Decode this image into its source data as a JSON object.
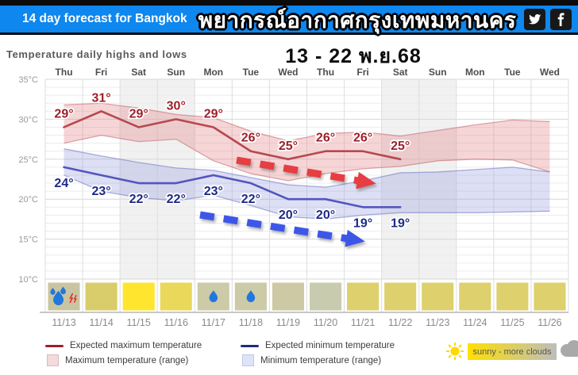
{
  "header": {
    "forecast_label": "14 day forecast for Bangkok",
    "title_thai": "พยากรณ์อากาศกรุงเทพมหานคร",
    "date_range": "13 - 22 พ.ย.68",
    "bar_color": "#0e87ef",
    "social_icons": [
      "twitter",
      "facebook"
    ]
  },
  "chart_heading": "Temperature daily highs and lows",
  "chart_data": {
    "type": "line",
    "title": "Temperature daily highs and lows",
    "x_day_labels": [
      "Thu",
      "Fri",
      "Sat",
      "Sun",
      "Mon",
      "Tue",
      "Wed",
      "Thu",
      "Fri",
      "Sat",
      "Sun",
      "Mon",
      "Tue",
      "Wed"
    ],
    "x_date_labels": [
      "11/13",
      "11/14",
      "11/15",
      "11/16",
      "11/17",
      "11/18",
      "11/19",
      "11/20",
      "11/21",
      "11/22",
      "11/23",
      "11/24",
      "11/25",
      "11/26"
    ],
    "ylim": [
      10,
      35
    ],
    "ytick_values": [
      35,
      30,
      25,
      20,
      15,
      10
    ],
    "ytick_labels": [
      "35°C",
      "30°C",
      "25°C",
      "20°C",
      "15°C",
      "10°C"
    ],
    "grid": true,
    "weekend_shaded_columns": [
      2,
      3,
      9,
      10
    ],
    "series": [
      {
        "name": "Expected maximum temperature",
        "color": "#b5494f",
        "label_color": "#9e1f27",
        "values": [
          29,
          31,
          29,
          30,
          29,
          26,
          25,
          26,
          26,
          25
        ]
      },
      {
        "name": "Expected minimum temperature",
        "color": "#5356bd",
        "label_color": "#1d2a85",
        "values": [
          24,
          23,
          22,
          22,
          23,
          22,
          20,
          20,
          19,
          19
        ]
      }
    ],
    "bands": [
      {
        "name": "Maximum temperature (range)",
        "fill": "rgba(228,128,134,0.33)",
        "edge": "rgba(190,100,106,0.55)",
        "upper": [
          31.8,
          32.0,
          31.4,
          30.6,
          30.2,
          28.5,
          27.3,
          28.2,
          28.4,
          27.9,
          28.6,
          29.3,
          29.9,
          29.7
        ],
        "lower": [
          27.0,
          28.0,
          27.2,
          27.5,
          24.8,
          23.2,
          22.3,
          23.2,
          23.8,
          24.1,
          24.8,
          25.0,
          24.9,
          23.4
        ]
      },
      {
        "name": "Minimum temperature (range)",
        "fill": "rgba(148,155,222,0.32)",
        "edge": "rgba(118,124,198,0.6)",
        "upper": [
          26.3,
          25.4,
          24.6,
          23.9,
          23.6,
          22.7,
          21.8,
          21.5,
          22.3,
          23.3,
          23.4,
          23.7,
          24.0,
          23.4
        ],
        "lower": [
          23.0,
          21.0,
          20.2,
          19.8,
          20.5,
          19.2,
          17.8,
          17.5,
          18.0,
          18.3,
          18.3,
          18.3,
          18.4,
          18.5
        ]
      }
    ],
    "trend_arrows": [
      {
        "series": "max",
        "direction": "down-right",
        "color": "#e63e42"
      },
      {
        "series": "min",
        "direction": "down-right",
        "color": "#3c57e8"
      }
    ],
    "daily_conditions": [
      {
        "date": "11/13",
        "day": "Thu",
        "cell_color": "#c9c5a1",
        "icons": [
          "heavy-rain",
          "thunderstorm"
        ]
      },
      {
        "date": "11/14",
        "day": "Fri",
        "cell_color": "#d9cc6b",
        "icons": []
      },
      {
        "date": "11/15",
        "day": "Sat",
        "cell_color": "#ffe52e",
        "icons": []
      },
      {
        "date": "11/16",
        "day": "Sun",
        "cell_color": "#e9d85a",
        "icons": []
      },
      {
        "date": "11/17",
        "day": "Mon",
        "cell_color": "#cccaa7",
        "icons": [
          "rain"
        ]
      },
      {
        "date": "11/18",
        "day": "Tue",
        "cell_color": "#cccaa7",
        "icons": [
          "rain"
        ]
      },
      {
        "date": "11/19",
        "day": "Wed",
        "cell_color": "#ccc9a4",
        "icons": []
      },
      {
        "date": "11/20",
        "day": "Thu",
        "cell_color": "#c9cbae",
        "icons": []
      },
      {
        "date": "11/21",
        "day": "Fri",
        "cell_color": "#ddd06d",
        "icons": []
      },
      {
        "date": "11/22",
        "day": "Sat",
        "cell_color": "#ddd06d",
        "icons": []
      },
      {
        "date": "11/23",
        "day": "Sun",
        "cell_color": "#ddd06d",
        "icons": []
      },
      {
        "date": "11/24",
        "day": "Mon",
        "cell_color": "#ddd06d",
        "icons": []
      },
      {
        "date": "11/25",
        "day": "Tue",
        "cell_color": "#ddd06d",
        "icons": []
      },
      {
        "date": "11/26",
        "day": "Wed",
        "cell_color": "#ddd06d",
        "icons": []
      }
    ]
  },
  "legend": {
    "expected_max": "Expected maximum temperature",
    "max_range": "Maximum temperature (range)",
    "expected_min": "Expected minimum temperature",
    "min_range": "Minimum temperature (range)",
    "condition_scale": "sunny - more clouds",
    "colors": {
      "max_line": "#9e1f27",
      "min_line": "#1d2a85",
      "max_fill": "#f4dadd",
      "max_fill_border": "#dcb9bd",
      "min_fill": "#dfe3f6",
      "min_fill_border": "#bfc6ea",
      "scale_from": "#ffe000",
      "scale_to": "#bdbdbd",
      "sun": "#ffd800",
      "cloud": "#a9a9a9",
      "rain_drop": "#2078dc",
      "thunder": "#e03030"
    }
  }
}
